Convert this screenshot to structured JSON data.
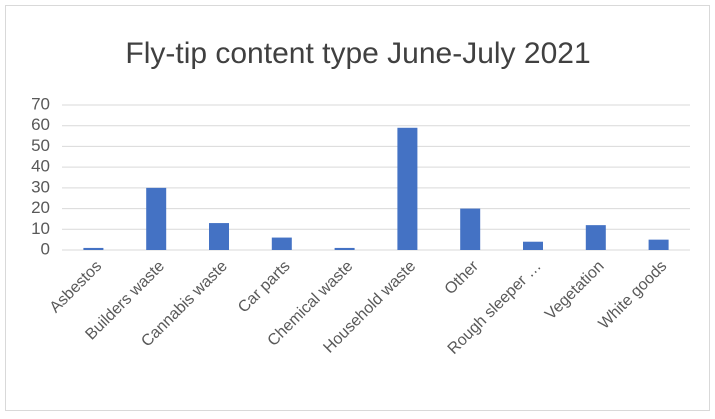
{
  "chart_data": {
    "type": "bar",
    "title": "Fly-tip content type June-July 2021",
    "categories": [
      "Asbestos",
      "Builders waste",
      "Cannabis waste",
      "Car parts",
      "Chemical waste",
      "Household waste",
      "Other",
      "Rough sleeper …",
      "Vegetation",
      "White goods"
    ],
    "values": [
      1,
      30,
      13,
      6,
      1,
      59,
      20,
      4,
      12,
      5
    ],
    "color": "#4472c4",
    "ylim": [
      0,
      70
    ],
    "yticks": [
      0,
      10,
      20,
      30,
      40,
      50,
      60,
      70
    ],
    "grid": true
  }
}
